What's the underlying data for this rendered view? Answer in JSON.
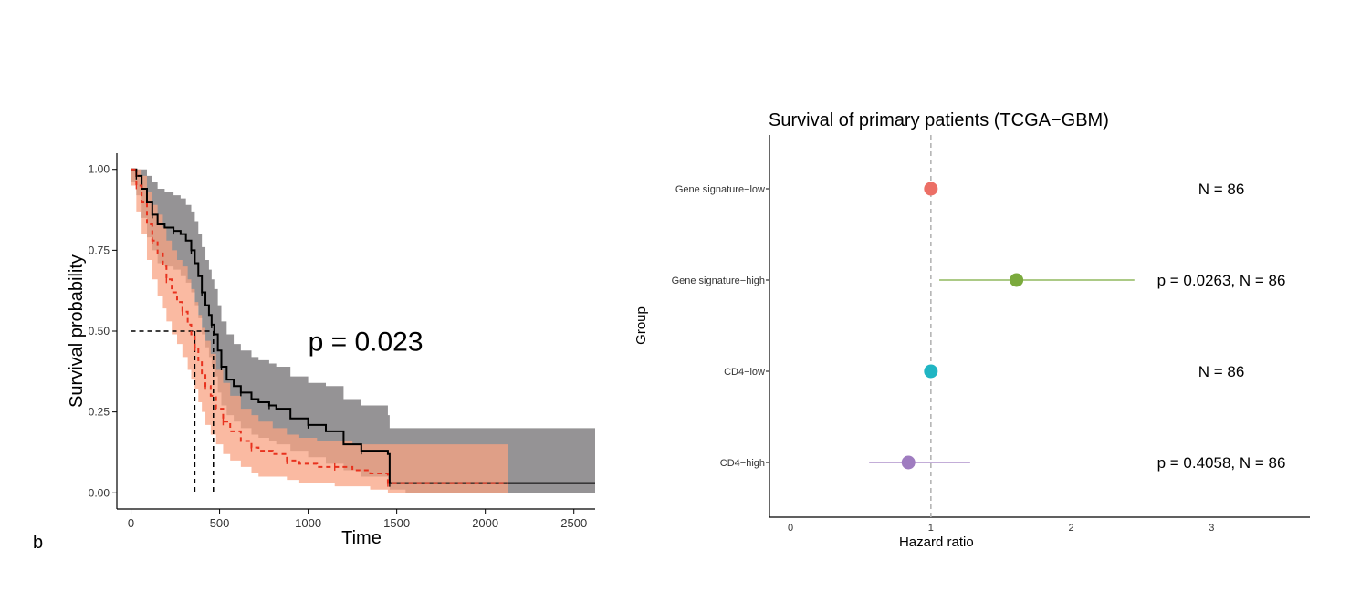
{
  "panel_label": "b",
  "colors": {
    "km_high": "#000000",
    "km_high_band": "#8c8a8c",
    "km_low": "#e8321e",
    "km_low_band": "#f8a383",
    "forest_low_sig": "#ec6f66",
    "forest_high_sig": "#7baa3d",
    "forest_cd4_low": "#20b5c3",
    "forest_cd4_high": "#9f7cc0",
    "ref_line": "#b5b5b5"
  },
  "chart_data": [
    {
      "type": "line",
      "subtype": "kaplan-meier",
      "title": "",
      "xlabel": "Time",
      "ylabel": "Survival probability",
      "xlim": [
        -80,
        2620
      ],
      "ylim": [
        -0.05,
        1.05
      ],
      "xticks": [
        0,
        500,
        1000,
        1500,
        2000,
        2500
      ],
      "yticks": [
        0,
        0.25,
        0.5,
        0.75,
        1.0
      ],
      "ytick_labels": [
        "0.00",
        "0.25",
        "0.50",
        "0.75",
        "1.00"
      ],
      "annotation": "p = 0.023",
      "median_survival": {
        "y": 0.5,
        "x_values": [
          360,
          465
        ]
      },
      "series": [
        {
          "key": "high",
          "line_style": "solid",
          "x": [
            0,
            30,
            60,
            90,
            120,
            150,
            190,
            240,
            280,
            310,
            340,
            360,
            380,
            400,
            420,
            440,
            455,
            470,
            490,
            510,
            540,
            580,
            620,
            680,
            720,
            780,
            820,
            900,
            1000,
            1100,
            1200,
            1300,
            1400,
            1450,
            1460,
            1550,
            2000,
            2620
          ],
          "y": [
            1.0,
            0.98,
            0.94,
            0.9,
            0.86,
            0.83,
            0.82,
            0.81,
            0.8,
            0.78,
            0.75,
            0.71,
            0.67,
            0.62,
            0.58,
            0.55,
            0.52,
            0.49,
            0.44,
            0.39,
            0.35,
            0.33,
            0.31,
            0.29,
            0.28,
            0.27,
            0.26,
            0.23,
            0.21,
            0.19,
            0.15,
            0.13,
            0.13,
            0.12,
            0.03,
            0.03,
            0.03,
            0.03
          ],
          "upper": [
            1.0,
            1.0,
            1.0,
            0.98,
            0.96,
            0.94,
            0.93,
            0.92,
            0.91,
            0.89,
            0.87,
            0.84,
            0.8,
            0.76,
            0.72,
            0.69,
            0.66,
            0.63,
            0.58,
            0.53,
            0.49,
            0.46,
            0.44,
            0.42,
            0.41,
            0.4,
            0.39,
            0.36,
            0.34,
            0.33,
            0.29,
            0.27,
            0.27,
            0.24,
            0.2,
            0.2,
            0.2,
            0.2
          ],
          "lower": [
            0.96,
            0.92,
            0.85,
            0.79,
            0.75,
            0.71,
            0.7,
            0.69,
            0.67,
            0.65,
            0.62,
            0.58,
            0.54,
            0.49,
            0.45,
            0.42,
            0.39,
            0.36,
            0.31,
            0.27,
            0.24,
            0.22,
            0.2,
            0.18,
            0.17,
            0.16,
            0.15,
            0.13,
            0.11,
            0.09,
            0.07,
            0.05,
            0.05,
            0.04,
            0.01,
            0.0,
            0.0,
            0.0
          ]
        },
        {
          "key": "low",
          "line_style": "dashed",
          "x": [
            0,
            30,
            60,
            90,
            120,
            150,
            180,
            200,
            230,
            260,
            290,
            320,
            340,
            360,
            380,
            400,
            420,
            450,
            480,
            520,
            560,
            620,
            680,
            720,
            800,
            880,
            950,
            1050,
            1150,
            1250,
            1350,
            1450,
            1500,
            2000,
            2130
          ],
          "y": [
            1.0,
            0.95,
            0.9,
            0.83,
            0.78,
            0.74,
            0.7,
            0.66,
            0.62,
            0.59,
            0.56,
            0.52,
            0.49,
            0.45,
            0.41,
            0.37,
            0.33,
            0.3,
            0.26,
            0.22,
            0.19,
            0.16,
            0.14,
            0.13,
            0.12,
            0.1,
            0.09,
            0.08,
            0.08,
            0.07,
            0.06,
            0.03,
            0.03,
            0.03,
            0.03
          ],
          "upper": [
            1.0,
            1.0,
            0.98,
            0.93,
            0.89,
            0.86,
            0.82,
            0.78,
            0.75,
            0.72,
            0.7,
            0.66,
            0.63,
            0.59,
            0.55,
            0.51,
            0.47,
            0.43,
            0.38,
            0.34,
            0.3,
            0.26,
            0.24,
            0.22,
            0.2,
            0.18,
            0.17,
            0.16,
            0.16,
            0.15,
            0.15,
            0.15,
            0.15,
            0.15,
            0.15
          ],
          "lower": [
            0.95,
            0.87,
            0.8,
            0.72,
            0.66,
            0.61,
            0.57,
            0.53,
            0.49,
            0.46,
            0.42,
            0.38,
            0.35,
            0.32,
            0.28,
            0.25,
            0.21,
            0.18,
            0.15,
            0.12,
            0.1,
            0.08,
            0.06,
            0.05,
            0.05,
            0.04,
            0.03,
            0.03,
            0.02,
            0.02,
            0.01,
            0.0,
            0.0,
            0.0,
            0.0
          ]
        }
      ]
    },
    {
      "type": "scatter",
      "subtype": "forest",
      "title": "Survival of primary patients (TCGA−GBM)",
      "xlabel": "Hazard ratio",
      "ylabel": "Group",
      "xlim": [
        -0.15,
        3.7
      ],
      "xticks": [
        0,
        1,
        2,
        3
      ],
      "reference_line": 1,
      "rows": [
        {
          "group": "Gene signature−low",
          "hr": 1.0,
          "ci_low": null,
          "ci_high": null,
          "label": "N = 86",
          "color_key": "forest_low_sig"
        },
        {
          "group": "Gene signature−high",
          "hr": 1.61,
          "ci_low": 1.06,
          "ci_high": 2.45,
          "label": "p = 0.0263, N = 86",
          "color_key": "forest_high_sig"
        },
        {
          "group": "CD4−low",
          "hr": 1.0,
          "ci_low": null,
          "ci_high": null,
          "label": "N = 86",
          "color_key": "forest_cd4_low"
        },
        {
          "group": "CD4−high",
          "hr": 0.84,
          "ci_low": 0.56,
          "ci_high": 1.28,
          "label": "p = 0.4058, N = 86",
          "color_key": "forest_cd4_high"
        }
      ]
    }
  ]
}
